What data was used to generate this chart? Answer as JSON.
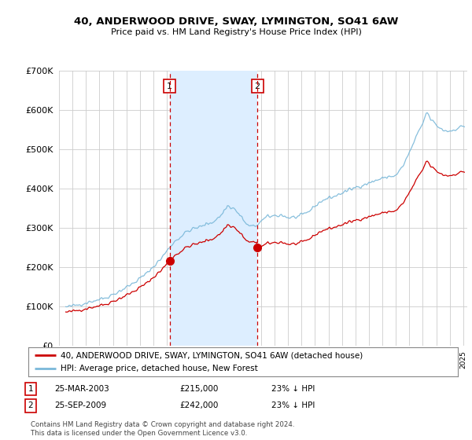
{
  "title1": "40, ANDERWOOD DRIVE, SWAY, LYMINGTON, SO41 6AW",
  "title2": "Price paid vs. HM Land Registry's House Price Index (HPI)",
  "legend_label1": "40, ANDERWOOD DRIVE, SWAY, LYMINGTON, SO41 6AW (detached house)",
  "legend_label2": "HPI: Average price, detached house, New Forest",
  "transaction1_date": "25-MAR-2003",
  "transaction1_price": "£215,000",
  "transaction1_hpi": "23% ↓ HPI",
  "transaction1_year": 2003.22,
  "transaction2_date": "25-SEP-2009",
  "transaction2_price": "£242,000",
  "transaction2_hpi": "23% ↓ HPI",
  "transaction2_year": 2009.72,
  "footer": "Contains HM Land Registry data © Crown copyright and database right 2024.\nThis data is licensed under the Open Government Licence v3.0.",
  "hpi_color": "#7ab8d9",
  "price_color": "#cc0000",
  "shade_color": "#ddeeff",
  "background_color": "#ffffff",
  "plot_bg": "#ffffff",
  "ylim": [
    0,
    700000
  ],
  "xlim_start": 1995.3,
  "xlim_end": 2025.3
}
